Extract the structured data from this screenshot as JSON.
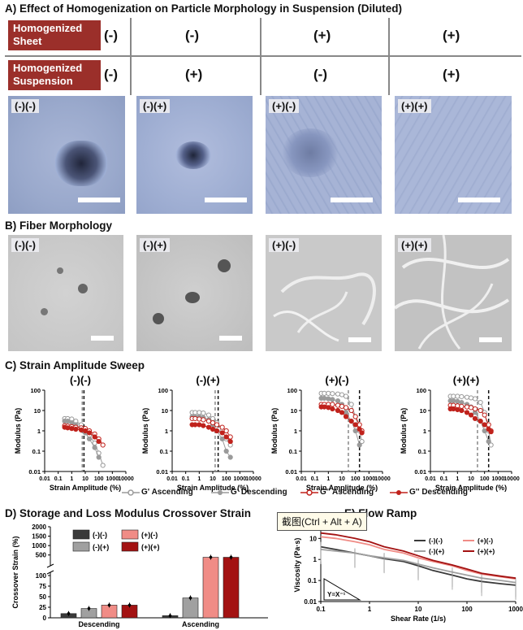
{
  "panelA": {
    "title": "A) Effect of Homogenization on Particle Morphology in Suspension (Diluted)",
    "row1_label": "Homogenized Sheet",
    "row2_label": "Homogenized Suspension",
    "row1_signs": [
      "(-)",
      "(-)",
      "(+)",
      "(+)"
    ],
    "row2_signs": [
      "(-)",
      "(+)",
      "(-)",
      "(+)"
    ],
    "image_tags": [
      "(-)(-)",
      "(-)(+)",
      "(+)(-)",
      "(+)(+)"
    ]
  },
  "panelB": {
    "title": "B) Fiber Morphology",
    "image_tags": [
      "(-)(-)",
      "(-)(+)",
      "(+)(-)",
      "(+)(+)"
    ]
  },
  "panelC": {
    "title": "C) Strain Amplitude Sweep",
    "subplot_titles": [
      "(-)(-)",
      "(-)(+)",
      "(+)(-)",
      "(+)(+)"
    ],
    "xlabel": "Strain Amplitude (%)",
    "ylabel": "Modulus (Pa)",
    "x_ticks": [
      "0.01",
      "0.1",
      "1",
      "10",
      "100",
      "1000",
      "10000"
    ],
    "y_ticks": [
      "100",
      "10",
      "1",
      "0.1",
      "0.01"
    ],
    "legend": [
      "G' Ascending",
      "G' Descending",
      "G'' Ascending",
      "G'' Descending"
    ]
  },
  "panelD": {
    "title": "D) Storage and Loss Modulus Crossover Strain",
    "ylabel": "Crossover Strain (%)",
    "y_ticks_top": [
      "2000",
      "1500",
      "1000",
      "500"
    ],
    "y_ticks_bottom": [
      "100",
      "75",
      "50",
      "25",
      "0"
    ],
    "groups": [
      "Descending",
      "Ascending"
    ],
    "legend": [
      "(-)(-)",
      "(+)(-)",
      "(-)(+)",
      "(+)(+)"
    ]
  },
  "panelE": {
    "title": "E) Flow Ramp",
    "tooltip": "截图(Ctrl + Alt + A)",
    "xlabel": "Shear Rate (1/s)",
    "ylabel": "Viscosity (Pa·s)",
    "x_ticks": [
      "0.1",
      "1",
      "10",
      "100",
      "1000"
    ],
    "y_ticks": [
      "10",
      "1",
      "0.1",
      "0.01"
    ],
    "legend": [
      "(-)(-)",
      "(+)(-)",
      "(-)(+)",
      "(+)(+)"
    ],
    "annotation": "Y=X⁻¹"
  },
  "colors": {
    "label_red": "#9b2f2a",
    "g_prime": "#9a9a9a",
    "g_dprime": "#c0221c",
    "nn": "#3a3a3a",
    "np": "#a0a0a0",
    "pn": "#f08c86",
    "pp": "#a31212"
  },
  "chart_data": [
    {
      "type": "line",
      "title": "(-)(-)",
      "xlabel": "Strain Amplitude (%)",
      "ylabel": "Modulus (Pa)",
      "x_scale": "log",
      "y_scale": "log",
      "xlim": [
        0.01,
        10000
      ],
      "ylim": [
        0.01,
        100
      ],
      "series": [
        {
          "name": "G' Ascending",
          "x": [
            0.3,
            0.5,
            1,
            2,
            5,
            10,
            20,
            50,
            100,
            200
          ],
          "y": [
            4,
            4,
            3.8,
            3,
            2,
            1.2,
            0.6,
            0.25,
            0.08,
            0.02
          ]
        },
        {
          "name": "G' Descending",
          "x": [
            0.3,
            0.5,
            1,
            2,
            5,
            10,
            20,
            50,
            100
          ],
          "y": [
            3,
            3,
            2.5,
            2,
            1.3,
            0.8,
            0.4,
            0.15,
            0.05
          ]
        },
        {
          "name": "G'' Ascending",
          "x": [
            0.3,
            0.5,
            1,
            2,
            5,
            10,
            20,
            50,
            100,
            200
          ],
          "y": [
            1.8,
            1.7,
            1.6,
            1.5,
            1.4,
            1.3,
            1.0,
            0.7,
            0.4,
            0.2
          ]
        },
        {
          "name": "G'' Descending",
          "x": [
            0.3,
            0.5,
            1,
            2,
            5,
            10,
            20,
            50,
            100
          ],
          "y": [
            1.5,
            1.4,
            1.3,
            1.2,
            1.1,
            1.0,
            0.8,
            0.5,
            0.3
          ]
        }
      ],
      "crossover_lines_x": [
        6,
        8
      ]
    },
    {
      "type": "line",
      "title": "(-)(+)",
      "xlabel": "Strain Amplitude (%)",
      "ylabel": "Modulus (Pa)",
      "x_scale": "log",
      "y_scale": "log",
      "xlim": [
        0.01,
        10000
      ],
      "ylim": [
        0.01,
        100
      ],
      "series": [
        {
          "name": "G' Ascending",
          "x": [
            0.3,
            0.5,
            1,
            2,
            5,
            10,
            20,
            50,
            100,
            200
          ],
          "y": [
            8,
            8,
            8,
            7.5,
            6,
            4,
            2.5,
            1,
            0.4,
            0.2
          ]
        },
        {
          "name": "G' Descending",
          "x": [
            0.3,
            0.5,
            1,
            2,
            5,
            10,
            20,
            50,
            100,
            200
          ],
          "y": [
            5,
            5,
            5,
            4.5,
            3.5,
            2,
            1,
            0.4,
            0.1,
            0.05
          ]
        },
        {
          "name": "G'' Ascending",
          "x": [
            0.3,
            0.5,
            1,
            2,
            5,
            10,
            20,
            50,
            100,
            200
          ],
          "y": [
            4,
            4,
            3.8,
            3.5,
            3,
            2.5,
            2,
            1.5,
            1,
            0.5
          ]
        },
        {
          "name": "G'' Descending",
          "x": [
            0.3,
            0.5,
            1,
            2,
            5,
            10,
            20,
            50,
            100,
            200
          ],
          "y": [
            2,
            2,
            2,
            1.8,
            1.5,
            1.2,
            1,
            0.8,
            0.5,
            0.3
          ]
        }
      ],
      "crossover_lines_x": [
        15,
        25
      ]
    },
    {
      "type": "line",
      "title": "(+)(-)",
      "xlabel": "Strain Amplitude (%)",
      "ylabel": "Modulus (Pa)",
      "x_scale": "log",
      "y_scale": "log",
      "xlim": [
        0.01,
        10000
      ],
      "ylim": [
        0.01,
        100
      ],
      "series": [
        {
          "name": "G' Ascending",
          "x": [
            0.3,
            0.5,
            1,
            2,
            5,
            10,
            20,
            50,
            100,
            200,
            300
          ],
          "y": [
            70,
            70,
            70,
            68,
            65,
            60,
            50,
            20,
            5,
            1,
            0.3
          ]
        },
        {
          "name": "G' Descending",
          "x": [
            0.3,
            0.5,
            1,
            2,
            5,
            10,
            20,
            50,
            100,
            200
          ],
          "y": [
            40,
            40,
            38,
            35,
            30,
            20,
            8,
            3,
            1,
            0.2
          ]
        },
        {
          "name": "G'' Ascending",
          "x": [
            0.3,
            0.5,
            1,
            2,
            5,
            10,
            20,
            50,
            100,
            200,
            300
          ],
          "y": [
            20,
            20,
            20,
            20,
            18,
            16,
            14,
            10,
            5,
            2,
            1
          ]
        },
        {
          "name": "G'' Descending",
          "x": [
            0.3,
            0.5,
            1,
            2,
            5,
            10,
            20,
            50,
            100,
            200,
            300
          ],
          "y": [
            15,
            15,
            14,
            12,
            10,
            8,
            5,
            3,
            2,
            1.2,
            0.8
          ]
        }
      ],
      "crossover_lines_x": [
        30,
        200
      ]
    },
    {
      "type": "line",
      "title": "(+)(+)",
      "xlabel": "Strain Amplitude (%)",
      "ylabel": "Modulus (Pa)",
      "x_scale": "log",
      "y_scale": "log",
      "xlim": [
        0.01,
        10000
      ],
      "ylim": [
        0.01,
        100
      ],
      "series": [
        {
          "name": "G' Ascending",
          "x": [
            0.3,
            0.5,
            1,
            2,
            5,
            10,
            20,
            50,
            100,
            200,
            300
          ],
          "y": [
            50,
            50,
            50,
            48,
            45,
            42,
            38,
            25,
            8,
            1,
            0.2
          ]
        },
        {
          "name": "G' Descending",
          "x": [
            0.3,
            0.5,
            1,
            2,
            5,
            10,
            20,
            50,
            100,
            200
          ],
          "y": [
            30,
            30,
            28,
            25,
            20,
            15,
            8,
            3,
            1,
            0.3
          ]
        },
        {
          "name": "G'' Ascending",
          "x": [
            0.3,
            0.5,
            1,
            2,
            5,
            10,
            20,
            50,
            100,
            200,
            300
          ],
          "y": [
            18,
            18,
            17,
            16,
            15,
            14,
            12,
            10,
            6,
            2,
            1
          ]
        },
        {
          "name": "G'' Descending",
          "x": [
            0.3,
            0.5,
            1,
            2,
            5,
            10,
            20,
            50,
            100,
            200,
            300
          ],
          "y": [
            12,
            12,
            11,
            10,
            8,
            6,
            4,
            3,
            2,
            1.2,
            0.9
          ]
        }
      ],
      "crossover_lines_x": [
        30,
        200
      ]
    },
    {
      "type": "bar",
      "title": "D) Storage and Loss Modulus Crossover Strain",
      "ylabel": "Crossover Strain (%)",
      "categories": [
        "Descending",
        "Ascending"
      ],
      "series": [
        {
          "name": "(-)(-)",
          "values": [
            10,
            5
          ]
        },
        {
          "name": "(-)(+)",
          "values": [
            22,
            47
          ]
        },
        {
          "name": "(+)(-)",
          "values": [
            30,
            380
          ]
        },
        {
          "name": "(+)(+)",
          "values": [
            30,
            380
          ]
        }
      ],
      "broken_axis": true
    },
    {
      "type": "line",
      "title": "E) Flow Ramp",
      "xlabel": "Shear Rate (1/s)",
      "ylabel": "Viscosity (Pa·s)",
      "x_scale": "log",
      "y_scale": "log",
      "xlim": [
        0.1,
        1000
      ],
      "ylim": [
        0.01,
        30
      ],
      "series": [
        {
          "name": "(-)(-)",
          "x": [
            0.1,
            0.2,
            0.5,
            1,
            2,
            5,
            10,
            20,
            50,
            100,
            200,
            500,
            1000
          ],
          "y": [
            4,
            3,
            2,
            1.5,
            1.1,
            0.8,
            0.5,
            0.3,
            0.18,
            0.12,
            0.09,
            0.07,
            0.06
          ]
        },
        {
          "name": "(+)(-)",
          "x": [
            0.1,
            0.2,
            0.5,
            1,
            2,
            5,
            10,
            20,
            50,
            100,
            200,
            500,
            1000
          ],
          "y": [
            12,
            10,
            7,
            5,
            3,
            2,
            1.2,
            0.8,
            0.5,
            0.3,
            0.2,
            0.15,
            0.12
          ]
        },
        {
          "name": "(-)(+)",
          "x": [
            0.1,
            0.2,
            0.5,
            1,
            2,
            5,
            10,
            20,
            50,
            100,
            200,
            500,
            1000
          ],
          "y": [
            3,
            2.5,
            2,
            1.5,
            1.2,
            0.9,
            0.6,
            0.4,
            0.25,
            0.18,
            0.13,
            0.1,
            0.08
          ]
        },
        {
          "name": "(+)(+)",
          "x": [
            0.1,
            0.2,
            0.5,
            1,
            2,
            5,
            10,
            20,
            50,
            100,
            200,
            500,
            1000
          ],
          "y": [
            18,
            15,
            10,
            7,
            4,
            2.5,
            1.5,
            0.9,
            0.55,
            0.35,
            0.22,
            0.16,
            0.13
          ]
        }
      ]
    }
  ]
}
